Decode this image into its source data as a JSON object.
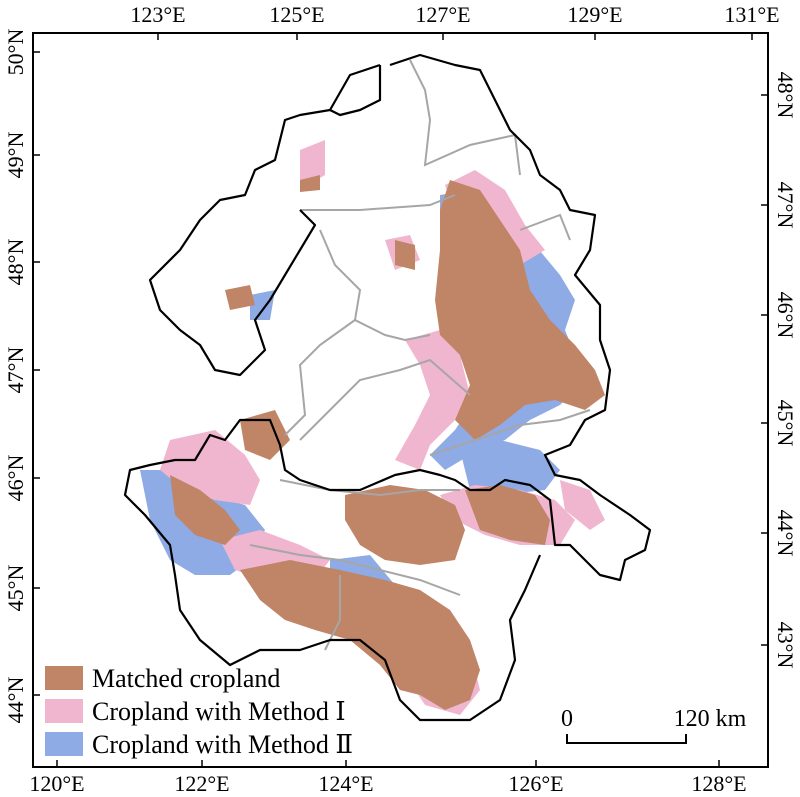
{
  "colors": {
    "matched": "#c08466",
    "method1": "#f1b6cf",
    "method2": "#8eabe6",
    "boundary_outer": "#000000",
    "boundary_inner": "#a6a6a6",
    "frame": "#000000"
  },
  "axes": {
    "top": [
      "123°E",
      "125°E",
      "127°E",
      "129°E",
      "131°E"
    ],
    "bottom": [
      "120°E",
      "122°E",
      "124°E",
      "126°E",
      "128°E"
    ],
    "left": [
      "50°N",
      "49°N",
      "48°N",
      "47°N",
      "46°N",
      "45°N",
      "44°N"
    ],
    "right": [
      "48°N",
      "47°N",
      "46°N",
      "45°N",
      "44°N",
      "43°N"
    ]
  },
  "legend": {
    "items": [
      {
        "label": "Matched cropland",
        "color_key": "matched"
      },
      {
        "label": "Cropland with Method Ⅰ",
        "color_key": "method1"
      },
      {
        "label": "Cropland with Method Ⅱ",
        "color_key": "method2"
      }
    ]
  },
  "scale_bar": {
    "start_label": "0",
    "end_label": "120 km"
  }
}
